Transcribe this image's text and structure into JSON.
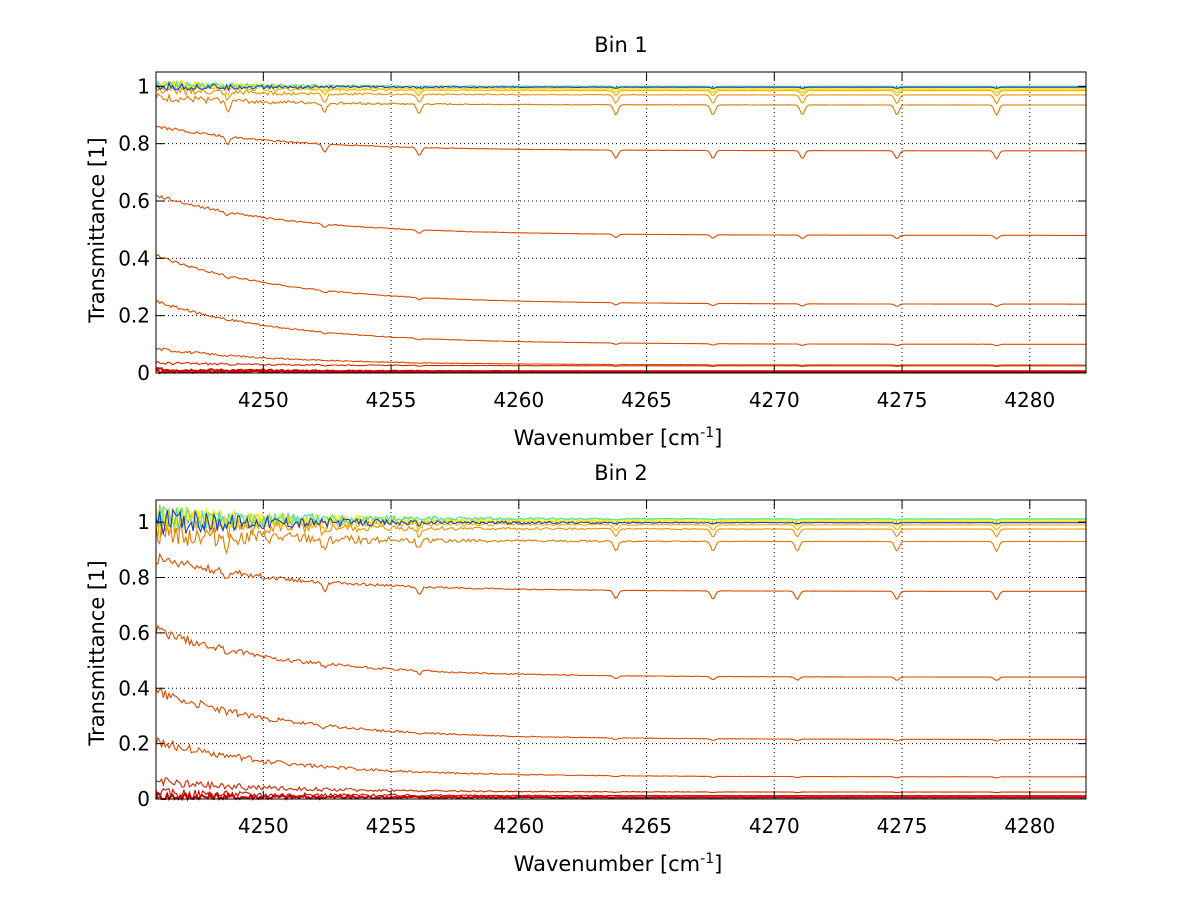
{
  "chart_data": [
    {
      "type": "line",
      "title": "Bin 1",
      "xlabel_base": "Wavenumber [cm",
      "xlabel_sup": "-1",
      "xlabel_end": "]",
      "ylabel": "Transmittance [1]",
      "xlim": [
        4245.8,
        4282.2
      ],
      "ylim": [
        0,
        1.05
      ],
      "xticks": [
        4250,
        4255,
        4260,
        4265,
        4270,
        4275,
        4280
      ],
      "yticks": [
        0,
        0.2,
        0.4,
        0.6,
        0.8,
        1
      ],
      "ytick_labels": [
        "0",
        "0.2",
        "0.4",
        "0.6",
        "0.8",
        "1"
      ],
      "grid": true,
      "absorption_lines": [
        4248.6,
        4252.4,
        4256.1,
        4263.8,
        4267.6,
        4271.1,
        4274.8,
        4278.7
      ],
      "series": [
        {
          "color": "#c00000",
          "start": 0.005,
          "end": 0.004,
          "decay": 0.0,
          "depth": 0.0
        },
        {
          "color": "#c80a00",
          "start": 0.012,
          "end": 0.006,
          "decay": 0.005,
          "depth": 0.0
        },
        {
          "color": "#d02a00",
          "start": 0.035,
          "end": 0.025,
          "decay": 0.01,
          "depth": 0.002
        },
        {
          "color": "#d84d00",
          "start": 0.085,
          "end": 0.028,
          "decay": 0.055,
          "depth": 0.002
        },
        {
          "color": "#d84d00",
          "start": 0.25,
          "end": 0.1,
          "decay": 0.14,
          "depth": 0.005
        },
        {
          "color": "#d84d00",
          "start": 0.41,
          "end": 0.24,
          "decay": 0.16,
          "depth": 0.008
        },
        {
          "color": "#d84d00",
          "start": 0.62,
          "end": 0.48,
          "decay": 0.12,
          "depth": 0.012
        },
        {
          "color": "#d84d00",
          "start": 0.86,
          "end": 0.775,
          "decay": 0.07,
          "depth": 0.028
        },
        {
          "color": "#e07a00",
          "start": 0.96,
          "end": 0.935,
          "decay": 0.03,
          "depth": 0.035
        },
        {
          "color": "#e89500",
          "start": 0.985,
          "end": 0.97,
          "decay": 0.012,
          "depth": 0.03
        },
        {
          "color": "#f0b400",
          "start": 1.0,
          "end": 0.985,
          "decay": 0.006,
          "depth": 0.018
        },
        {
          "color": "#ffd000",
          "start": 1.01,
          "end": 0.99,
          "decay": 0.0,
          "depth": 0.012
        },
        {
          "color": "#ffee00",
          "start": 1.01,
          "end": 0.995,
          "decay": 0.0,
          "depth": 0.008
        },
        {
          "color": "#e8f020",
          "start": 1.005,
          "end": 0.998,
          "decay": 0.0,
          "depth": 0.006
        },
        {
          "color": "#40e0c0",
          "start": 1.005,
          "end": 1.0,
          "decay": 0.0,
          "depth": 0.004
        },
        {
          "color": "#1e3cc8",
          "start": 1.0,
          "end": 0.997,
          "decay": 0.0,
          "depth": 0.004
        }
      ]
    },
    {
      "type": "line",
      "title": "Bin 2",
      "xlabel_base": "Wavenumber [cm",
      "xlabel_sup": "-1",
      "xlabel_end": "]",
      "ylabel": "Transmittance [1]",
      "xlim": [
        4245.8,
        4282.2
      ],
      "ylim": [
        0,
        1.08
      ],
      "xticks": [
        4250,
        4255,
        4260,
        4265,
        4270,
        4275,
        4280
      ],
      "yticks": [
        0,
        0.2,
        0.4,
        0.6,
        0.8,
        1
      ],
      "ytick_labels": [
        "0",
        "0.2",
        "0.4",
        "0.6",
        "0.8",
        "1"
      ],
      "grid": true,
      "absorption_lines": [
        4248.6,
        4252.4,
        4256.1,
        4263.8,
        4267.6,
        4270.9,
        4274.8,
        4278.7
      ],
      "series": [
        {
          "color": "#c00000",
          "start": 0.008,
          "end": 0.006,
          "decay": 0.0,
          "depth": 0.0
        },
        {
          "color": "#c80a00",
          "start": 0.02,
          "end": 0.012,
          "decay": 0.006,
          "depth": 0.0
        },
        {
          "color": "#d02a00",
          "start": 0.06,
          "end": 0.025,
          "decay": 0.03,
          "depth": 0.002
        },
        {
          "color": "#d84d00",
          "start": 0.21,
          "end": 0.08,
          "decay": 0.12,
          "depth": 0.004
        },
        {
          "color": "#d84d00",
          "start": 0.39,
          "end": 0.215,
          "decay": 0.15,
          "depth": 0.006
        },
        {
          "color": "#d84d00",
          "start": 0.61,
          "end": 0.44,
          "decay": 0.13,
          "depth": 0.012
        },
        {
          "color": "#d84d00",
          "start": 0.87,
          "end": 0.75,
          "decay": 0.09,
          "depth": 0.03
        },
        {
          "color": "#e07a00",
          "start": 0.96,
          "end": 0.93,
          "decay": 0.03,
          "depth": 0.035
        },
        {
          "color": "#e89500",
          "start": 0.99,
          "end": 0.975,
          "decay": 0.01,
          "depth": 0.028
        },
        {
          "color": "#f0b400",
          "start": 1.01,
          "end": 0.99,
          "decay": 0.004,
          "depth": 0.018
        },
        {
          "color": "#ffd000",
          "start": 1.02,
          "end": 1.0,
          "decay": 0.0,
          "depth": 0.012
        },
        {
          "color": "#ffee00",
          "start": 1.02,
          "end": 1.005,
          "decay": 0.0,
          "depth": 0.008
        },
        {
          "color": "#e8f020",
          "start": 1.015,
          "end": 1.01,
          "decay": 0.0,
          "depth": 0.006
        },
        {
          "color": "#40e0c0",
          "start": 1.015,
          "end": 1.012,
          "decay": 0.0,
          "depth": 0.004
        },
        {
          "color": "#1e3cc8",
          "start": 1.0,
          "end": 0.998,
          "decay": 0.0,
          "depth": 0.004
        }
      ]
    }
  ]
}
